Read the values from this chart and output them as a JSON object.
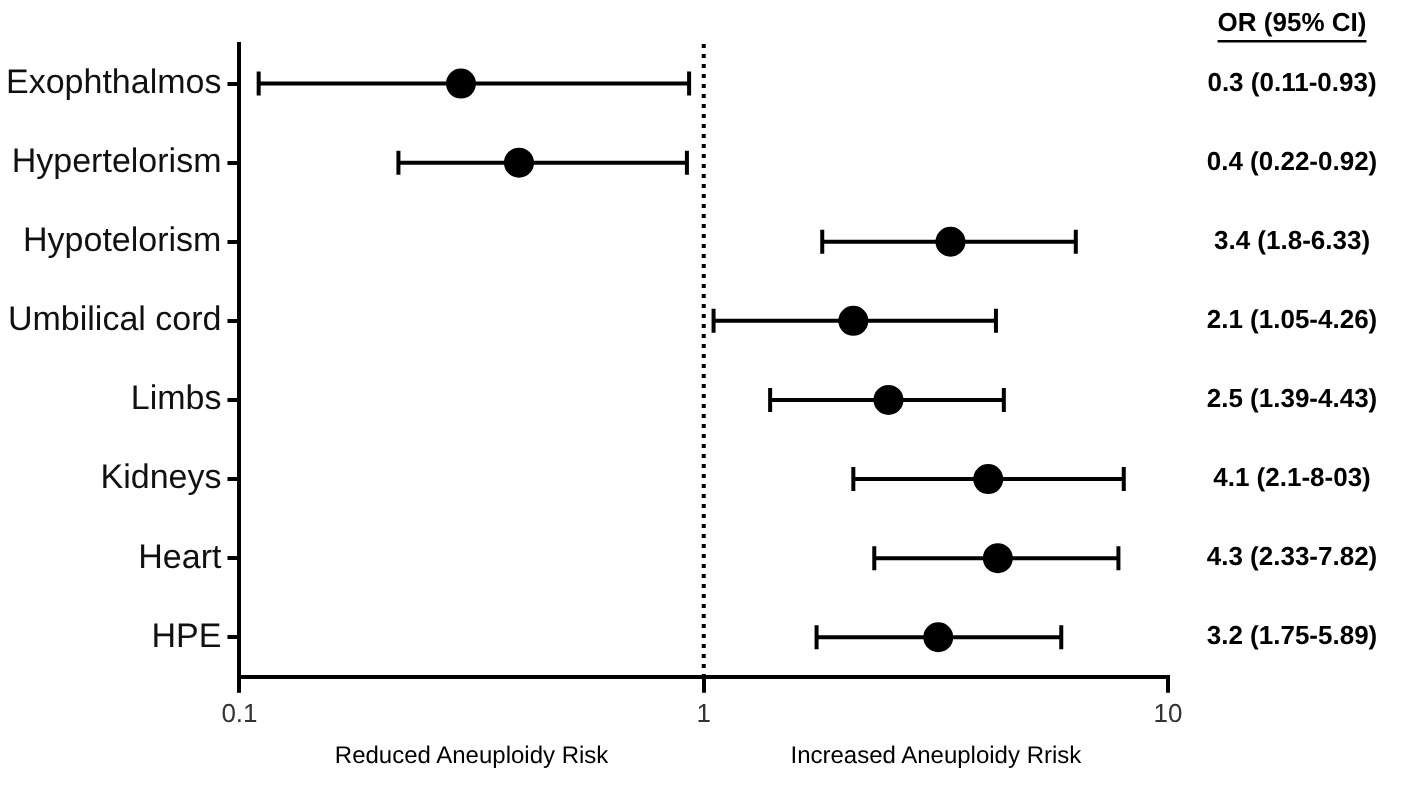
{
  "chart_data": {
    "type": "scatter",
    "orientation": "horizontal",
    "categories": [
      "Exophthalmos",
      "Hypertelorism",
      "Hypotelorism",
      "Umbilical cord",
      "Limbs",
      "Kidneys",
      "Heart",
      "HPE"
    ],
    "values": [
      0.3,
      0.4,
      3.4,
      2.1,
      2.5,
      4.1,
      4.3,
      3.2
    ],
    "errors": [
      [
        0.11,
        0.93
      ],
      [
        0.22,
        0.92
      ],
      [
        1.8,
        6.33
      ],
      [
        1.05,
        4.26
      ],
      [
        1.39,
        4.43
      ],
      [
        2.1,
        8.03
      ],
      [
        2.33,
        7.82
      ],
      [
        1.75,
        5.89
      ]
    ],
    "value_labels": [
      "0.3 (0.11-0.93)",
      "0.4 (0.22-0.92)",
      "3.4 (1.8-6.33)",
      "2.1 (1.05-4.26)",
      "2.5 (1.39-4.43)",
      "4.1 (2.1-8-03)",
      "4.3 (2.33-7.82)",
      "3.2 (1.75-5.89)"
    ],
    "color": "#000000",
    "marker": "circle",
    "log": "x",
    "grid": false,
    "legend": false,
    "xlim": [
      0.1,
      10
    ],
    "xticks": [
      0.1,
      1,
      10
    ],
    "ref_lines": [
      {
        "axis": "x",
        "value": 1,
        "line_style": "dotted",
        "color": "#000000"
      }
    ],
    "annotations": [
      "OR (95% CI)",
      "Reduced Aneuploidy Risk",
      "Increased Aneuploidy Rrisk"
    ]
  }
}
